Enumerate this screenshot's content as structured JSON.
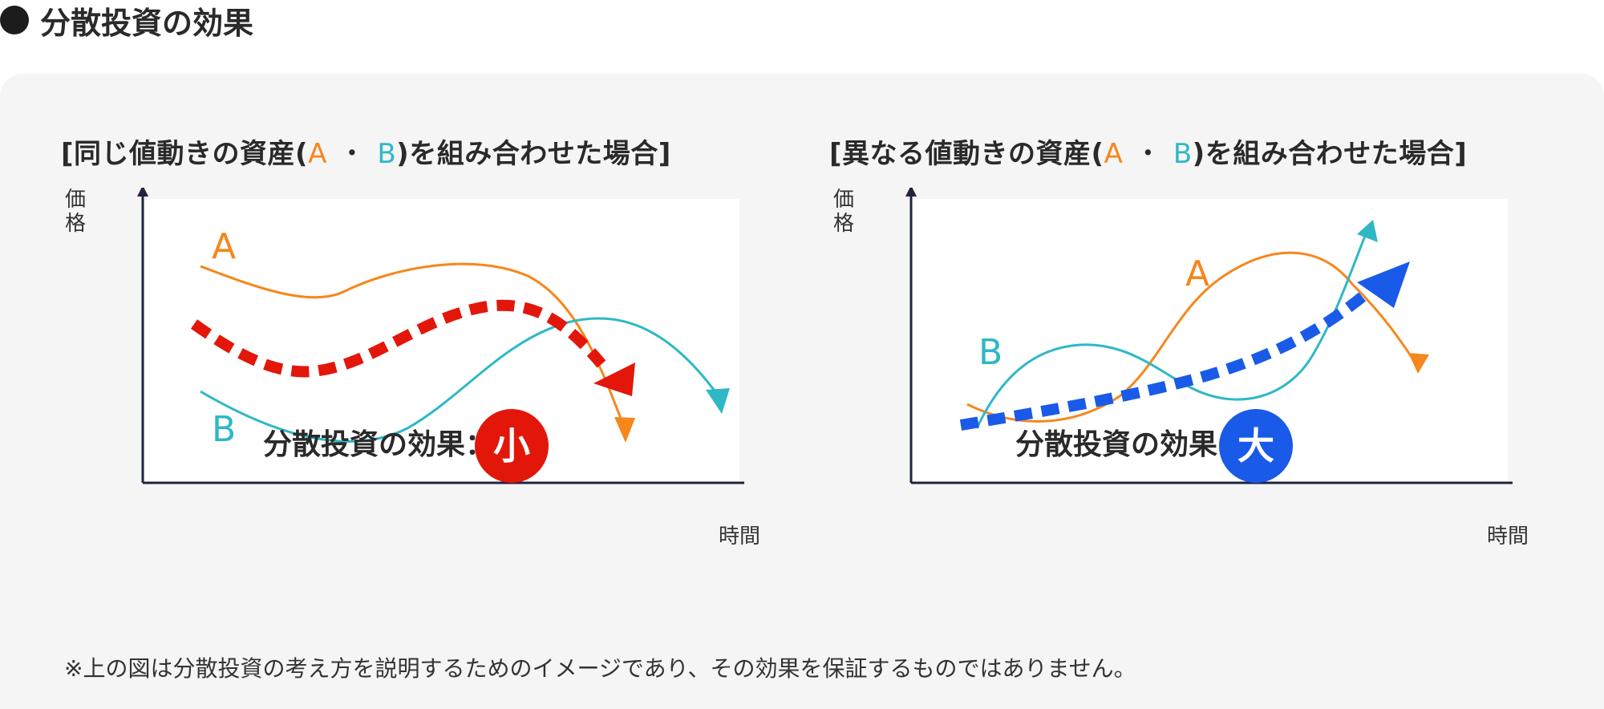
{
  "header": {
    "title": "分散投資の効果"
  },
  "diagrams": [
    {
      "title_prefix": "[同じ値動きの資産(",
      "title_a": "A",
      "title_dot": "・",
      "title_b": "B",
      "title_suffix": ")を組み合わせた場合]",
      "y_axis_label": "価格",
      "x_axis_label": "時間",
      "series_a_label": "A",
      "series_b_label": "B",
      "effect_label": "分散投資の効果：",
      "effect_badge": "小",
      "badge_color": "#e3160a",
      "trend_color": "#e3160a"
    },
    {
      "title_prefix": "[異なる値動きの資産(",
      "title_a": "A",
      "title_dot": "・",
      "title_b": "B",
      "title_suffix": ")を組み合わせた場合]",
      "y_axis_label": "価格",
      "x_axis_label": "時間",
      "series_a_label": "A",
      "series_b_label": "B",
      "effect_label": "分散投資の効果：",
      "effect_badge": "大",
      "badge_color": "#1a5ae8",
      "trend_color": "#1a5ae8"
    }
  ],
  "colors": {
    "series_a": "#f7861c",
    "series_b": "#2eb8c6",
    "axis": "#1f2440",
    "panel_bg": "#f5f5f5"
  },
  "footnote": "※上の図は分散投資の考え方を説明するためのイメージであり、その効果を保証するものではありません。"
}
